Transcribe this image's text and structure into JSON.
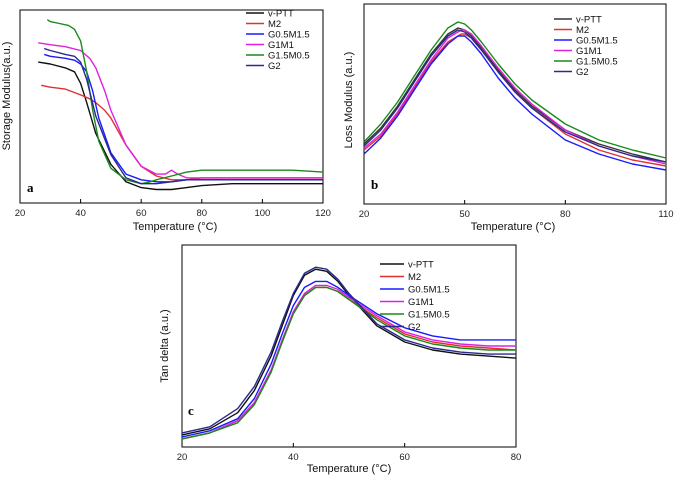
{
  "figure": {
    "title": ""
  },
  "chart_data": [
    {
      "id": "a",
      "type": "line",
      "panel_label": "a",
      "title": "",
      "xlabel": "Temperature (°C)",
      "ylabel": "Storage Modulus(a.u.)",
      "xlim": [
        20,
        120
      ],
      "ylim": [
        0,
        100
      ],
      "xticks": [
        20,
        40,
        60,
        80,
        100,
        120
      ],
      "yticks": [],
      "legend": "top-right",
      "series": [
        {
          "name": "v-PTT",
          "color": "#111111",
          "x": [
            26,
            30,
            35,
            38,
            40,
            42,
            45,
            50,
            55,
            60,
            65,
            70,
            75,
            80,
            90,
            100,
            110,
            120
          ],
          "y": [
            73,
            72,
            70,
            68,
            62,
            52,
            36,
            20,
            11,
            8,
            7,
            7,
            8,
            9,
            10,
            10,
            10,
            10
          ]
        },
        {
          "name": "M2",
          "color": "#e03030",
          "x": [
            27,
            30,
            35,
            40,
            43,
            45,
            48,
            50,
            55,
            60,
            65,
            70,
            75,
            80,
            90,
            100,
            110,
            120
          ],
          "y": [
            61,
            60,
            59,
            56,
            54,
            52,
            48,
            44,
            30,
            19,
            14,
            12,
            12,
            13,
            13,
            13,
            13,
            13
          ]
        },
        {
          "name": "G0.5M1.5",
          "color": "#1a1aff",
          "x": [
            28,
            30,
            35,
            38,
            40,
            42,
            44,
            46,
            50,
            55,
            60,
            65,
            70,
            75,
            80,
            90,
            100,
            110,
            120
          ],
          "y": [
            77,
            76,
            75,
            74,
            72,
            68,
            58,
            44,
            26,
            15,
            12,
            11,
            11,
            12,
            12,
            12,
            12,
            12,
            12
          ]
        },
        {
          "name": "G1M1",
          "color": "#dd22dd",
          "x": [
            26,
            30,
            35,
            40,
            43,
            45,
            48,
            50,
            55,
            60,
            65,
            68,
            70,
            72,
            75,
            80,
            90,
            100,
            110,
            120
          ],
          "y": [
            83,
            82,
            81,
            79,
            75,
            70,
            58,
            48,
            30,
            19,
            15,
            15,
            17,
            15,
            13,
            13,
            13,
            13,
            13,
            13
          ]
        },
        {
          "name": "G1.5M0.5",
          "color": "#1a8a1a",
          "x": [
            29,
            30,
            33,
            36,
            38,
            40,
            42,
            44,
            46,
            50,
            55,
            60,
            63,
            65,
            70,
            75,
            80,
            90,
            100,
            110,
            120
          ],
          "y": [
            95,
            94,
            93,
            92,
            90,
            84,
            68,
            48,
            32,
            18,
            12,
            10,
            11,
            12,
            14,
            16,
            17,
            17,
            17,
            17,
            16
          ]
        },
        {
          "name": "G2",
          "color": "#2a2a90",
          "x": [
            28,
            30,
            35,
            38,
            40,
            42,
            45,
            50,
            55,
            60,
            65,
            70,
            75,
            80,
            90,
            100,
            110,
            120
          ],
          "y": [
            80,
            79,
            77,
            76,
            73,
            64,
            45,
            25,
            13,
            10,
            10,
            11,
            12,
            12,
            12,
            12,
            12,
            12
          ]
        }
      ]
    },
    {
      "id": "b",
      "type": "line",
      "panel_label": "b",
      "title": "",
      "xlabel": "Temperature (°C)",
      "ylabel": "Loss Modulus (a.u.)",
      "xlim": [
        20,
        110
      ],
      "ylim": [
        0,
        100
      ],
      "xticks": [
        20,
        50,
        80,
        110
      ],
      "yticks": [],
      "legend": "top-right",
      "series": [
        {
          "name": "v-PTT",
          "color": "#333333",
          "x": [
            20,
            25,
            30,
            35,
            40,
            45,
            48,
            50,
            52,
            55,
            60,
            65,
            70,
            80,
            90,
            100,
            110
          ],
          "y": [
            30,
            38,
            49,
            62,
            75,
            85,
            88,
            87,
            84,
            78,
            67,
            57,
            49,
            37,
            30,
            25,
            21
          ]
        },
        {
          "name": "M2",
          "color": "#e03030",
          "x": [
            20,
            25,
            30,
            35,
            40,
            45,
            49,
            50,
            52,
            55,
            60,
            65,
            70,
            80,
            90,
            100,
            110
          ],
          "y": [
            27,
            34,
            45,
            58,
            71,
            81,
            85,
            85,
            83,
            77,
            66,
            56,
            48,
            35,
            27,
            22,
            19
          ]
        },
        {
          "name": "G0.5M1.5",
          "color": "#1a1aff",
          "x": [
            20,
            25,
            30,
            35,
            40,
            45,
            48,
            50,
            52,
            55,
            60,
            65,
            70,
            80,
            90,
            100,
            110
          ],
          "y": [
            25,
            33,
            44,
            57,
            70,
            80,
            84,
            84,
            81,
            75,
            63,
            53,
            45,
            32,
            25,
            20,
            17
          ]
        },
        {
          "name": "G1M1",
          "color": "#dd22dd",
          "x": [
            20,
            25,
            30,
            35,
            40,
            45,
            49,
            50,
            52,
            55,
            60,
            65,
            70,
            80,
            90,
            100,
            110
          ],
          "y": [
            28,
            35,
            46,
            59,
            72,
            83,
            87,
            87,
            85,
            79,
            68,
            58,
            50,
            37,
            29,
            24,
            20
          ]
        },
        {
          "name": "G1.5M0.5",
          "color": "#1a8a1a",
          "x": [
            20,
            25,
            30,
            35,
            40,
            45,
            48,
            50,
            52,
            55,
            60,
            65,
            70,
            80,
            90,
            100,
            110
          ],
          "y": [
            31,
            40,
            51,
            64,
            77,
            88,
            91,
            90,
            87,
            81,
            70,
            60,
            52,
            40,
            32,
            27,
            23
          ]
        },
        {
          "name": "G2",
          "color": "#2a2a90",
          "x": [
            20,
            25,
            30,
            35,
            40,
            45,
            48,
            50,
            52,
            55,
            60,
            65,
            70,
            80,
            90,
            100,
            110
          ],
          "y": [
            29,
            37,
            48,
            61,
            74,
            84,
            87,
            86,
            83,
            77,
            66,
            56,
            48,
            36,
            29,
            24,
            21
          ]
        }
      ]
    },
    {
      "id": "c",
      "type": "line",
      "panel_label": "c",
      "title": "",
      "xlabel": "Temperature (°C)",
      "ylabel": "Tan delta (a.u.)",
      "xlim": [
        20,
        80
      ],
      "ylim": [
        0,
        100
      ],
      "xticks": [
        20,
        40,
        60,
        80
      ],
      "yticks": [],
      "legend": "top-right",
      "series": [
        {
          "name": "v-PTT",
          "color": "#111111",
          "x": [
            20,
            25,
            30,
            33,
            36,
            38,
            40,
            42,
            44,
            46,
            48,
            50,
            55,
            60,
            65,
            70,
            75,
            80
          ],
          "y": [
            6,
            9,
            17,
            28,
            45,
            60,
            75,
            85,
            88,
            87,
            82,
            75,
            60,
            52,
            48,
            46,
            45,
            44
          ]
        },
        {
          "name": "M2",
          "color": "#e03030",
          "x": [
            20,
            25,
            30,
            33,
            36,
            38,
            40,
            42,
            44,
            46,
            48,
            50,
            55,
            60,
            65,
            70,
            75,
            80
          ],
          "y": [
            4,
            7,
            13,
            22,
            38,
            52,
            66,
            75,
            79,
            79,
            77,
            73,
            64,
            56,
            52,
            50,
            49,
            48
          ]
        },
        {
          "name": "G0.5M1.5",
          "color": "#1a1aff",
          "x": [
            20,
            25,
            30,
            33,
            36,
            38,
            40,
            42,
            44,
            46,
            48,
            50,
            55,
            60,
            65,
            70,
            75,
            80
          ],
          "y": [
            5,
            8,
            14,
            24,
            41,
            56,
            70,
            79,
            82,
            82,
            79,
            75,
            66,
            59,
            55,
            53,
            53,
            53
          ]
        },
        {
          "name": "G1M1",
          "color": "#dd22dd",
          "x": [
            20,
            25,
            30,
            33,
            36,
            38,
            40,
            42,
            44,
            46,
            48,
            50,
            55,
            60,
            65,
            70,
            75,
            80
          ],
          "y": [
            4,
            7,
            13,
            22,
            38,
            53,
            67,
            76,
            80,
            80,
            78,
            74,
            65,
            57,
            53,
            51,
            50,
            50
          ]
        },
        {
          "name": "G1.5M0.5",
          "color": "#1a8a1a",
          "x": [
            20,
            25,
            30,
            33,
            36,
            38,
            40,
            42,
            44,
            46,
            48,
            50,
            55,
            60,
            65,
            70,
            75,
            80
          ],
          "y": [
            4,
            7,
            12,
            21,
            37,
            52,
            66,
            75,
            79,
            79,
            77,
            73,
            63,
            55,
            51,
            49,
            48,
            48
          ]
        },
        {
          "name": "G2",
          "color": "#2a2a90",
          "x": [
            20,
            25,
            30,
            33,
            36,
            38,
            40,
            42,
            44,
            46,
            48,
            50,
            55,
            60,
            65,
            70,
            75,
            80
          ],
          "y": [
            7,
            10,
            19,
            30,
            47,
            62,
            76,
            86,
            89,
            88,
            83,
            76,
            61,
            53,
            49,
            47,
            46,
            46
          ]
        }
      ]
    }
  ]
}
